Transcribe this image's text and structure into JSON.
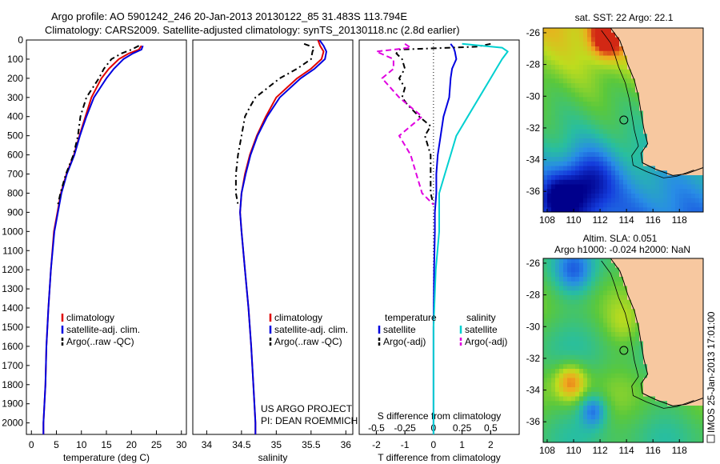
{
  "header": {
    "line1": "Argo profile: AO 5901242_246 20-Jan-2013 20130122_85 31.483S 113.794E",
    "line2": "Climatology: CARS2009. Satellite-adjusted climatology: synTS_20130118.nc (2.8d earlier)"
  },
  "colors": {
    "climatology": "#e00000",
    "satellite": "#0000e0",
    "argo": "#000000",
    "salinity_sat": "#00d0d0",
    "salinity_argo": "#e000e0"
  },
  "chart_data": [
    {
      "type": "line",
      "name": "temperature-profile",
      "xlabel": "temperature (deg C)",
      "ylabel": "",
      "xlim": [
        -1,
        31
      ],
      "ylim": [
        2060,
        0
      ],
      "xticks": [
        0,
        5,
        10,
        15,
        20,
        25,
        30
      ],
      "yticks": [
        0,
        100,
        200,
        300,
        400,
        500,
        600,
        700,
        800,
        900,
        1000,
        1100,
        1200,
        1300,
        1400,
        1500,
        1600,
        1700,
        1800,
        1900,
        2000
      ],
      "legend": [
        "climatology",
        "satellite-adj. clim.",
        "Argo(..raw -QC)"
      ],
      "series": [
        {
          "name": "climatology",
          "y": [
            30,
            50,
            70,
            100,
            150,
            200,
            300,
            400,
            500,
            600,
            700,
            800,
            900,
            1000,
            1200,
            1400,
            1600,
            1800,
            2000,
            2060
          ],
          "x": [
            22.0,
            21.5,
            19.5,
            17.5,
            15.5,
            14.0,
            12.0,
            10.8,
            9.6,
            8.5,
            7.0,
            5.9,
            5.2,
            4.5,
            3.9,
            3.4,
            3.0,
            2.8,
            2.4,
            2.4
          ]
        },
        {
          "name": "satellite-adj. clim.",
          "y": [
            30,
            50,
            70,
            100,
            150,
            200,
            300,
            400,
            500,
            600,
            700,
            800,
            900,
            1000,
            1200,
            1400,
            1600,
            1800,
            2000,
            2060
          ],
          "x": [
            22.3,
            22.0,
            20.3,
            18.4,
            16.5,
            15.0,
            12.5,
            11.0,
            9.7,
            8.6,
            7.1,
            6.0,
            5.3,
            4.6,
            3.9,
            3.4,
            3.0,
            2.8,
            2.4,
            2.4
          ]
        },
        {
          "name": "Argo(..raw -QC)",
          "y": [
            30,
            50,
            70,
            100,
            150,
            200,
            300,
            400,
            500,
            600,
            700,
            800,
            860
          ],
          "x": [
            21.5,
            20.0,
            18.0,
            16.0,
            14.5,
            13.5,
            11.0,
            9.8,
            9.3,
            8.4,
            6.9,
            5.8,
            5.3
          ]
        }
      ]
    },
    {
      "type": "line",
      "name": "salinity-profile",
      "xlabel": "salinity",
      "ylabel": "",
      "xlim": [
        33.8,
        36.1
      ],
      "ylim": [
        2060,
        0
      ],
      "xticks": [
        34,
        34.5,
        35,
        35.5,
        36
      ],
      "legend": [
        "climatology",
        "satellite-adj. clim.",
        "Argo(..raw -QC)"
      ],
      "series": [
        {
          "name": "climatology",
          "y": [
            0,
            30,
            60,
            100,
            150,
            200,
            300,
            400,
            500,
            600,
            700,
            800,
            900,
            1000,
            1200,
            1400,
            1600,
            1800,
            2000,
            2060
          ],
          "x": [
            35.6,
            35.63,
            35.68,
            35.65,
            35.5,
            35.3,
            35.0,
            34.85,
            34.72,
            34.62,
            34.55,
            34.5,
            34.48,
            34.5,
            34.55,
            34.6,
            34.64,
            34.67,
            34.7,
            34.7
          ]
        },
        {
          "name": "satellite-adj. clim.",
          "y": [
            0,
            30,
            60,
            100,
            150,
            200,
            300,
            400,
            500,
            600,
            700,
            800,
            900,
            1000,
            1200,
            1400,
            1600,
            1800,
            2000,
            2060
          ],
          "x": [
            35.62,
            35.68,
            35.72,
            35.7,
            35.55,
            35.35,
            35.05,
            34.87,
            34.73,
            34.63,
            34.56,
            34.5,
            34.48,
            34.5,
            34.55,
            34.6,
            34.64,
            34.67,
            34.7,
            34.7
          ]
        },
        {
          "name": "Argo(..raw -QC)",
          "y": [
            20,
            40,
            60,
            100,
            150,
            200,
            300,
            350,
            400,
            500,
            600,
            700,
            800,
            860
          ],
          "x": [
            35.4,
            35.55,
            35.52,
            35.5,
            35.3,
            35.05,
            34.7,
            34.62,
            34.55,
            34.5,
            34.45,
            34.42,
            34.42,
            34.45
          ]
        }
      ]
    },
    {
      "type": "line",
      "name": "difference-profile",
      "xlabel": "T difference from climatology",
      "xlabel2": "S difference from climatology",
      "xlim": [
        -2.6,
        3.0
      ],
      "ylim": [
        2060,
        0
      ],
      "xticks": [
        -2,
        -1,
        0,
        1,
        2
      ],
      "xticks2": [
        -0.5,
        -0.25,
        0,
        0.25,
        0.5
      ],
      "legend_headers": [
        "temperature",
        "salinity"
      ],
      "legend": [
        "satellite",
        "Argo(-adj)",
        "satellite",
        "Argo(-adj)"
      ],
      "series": [
        {
          "name": "temperature satellite",
          "y": [
            20,
            40,
            60,
            100,
            150,
            200,
            300,
            400,
            500,
            600,
            700,
            800,
            900,
            1000,
            1200,
            1500,
            2000,
            2060
          ],
          "x": [
            0.6,
            0.7,
            0.75,
            0.8,
            0.65,
            0.6,
            0.55,
            0.35,
            0.25,
            0.15,
            0.1,
            0.1,
            0.05,
            0.05,
            0.02,
            0.0,
            0.0,
            0.0
          ]
        },
        {
          "name": "temperature Argo(-adj)",
          "y": [
            20,
            35,
            50,
            70,
            100,
            150,
            200,
            250,
            300,
            340,
            400,
            450,
            500,
            600,
            700,
            800,
            860
          ],
          "x": [
            2.0,
            1.5,
            -1.2,
            -1.3,
            -1.1,
            -1.0,
            -1.2,
            -1.0,
            -1.1,
            -0.9,
            -0.5,
            -0.1,
            -0.3,
            -0.1,
            -0.1,
            -0.1,
            0.0
          ]
        },
        {
          "name": "salinity satellite",
          "y": [
            20,
            40,
            60,
            100,
            150,
            200,
            300,
            400,
            500,
            600,
            700,
            800,
            900,
            1000,
            1200,
            1500,
            2000,
            2060
          ],
          "x": [
            0.25,
            0.6,
            0.65,
            0.6,
            0.55,
            0.5,
            0.4,
            0.3,
            0.2,
            0.15,
            0.1,
            0.05,
            0.05,
            0.05,
            0.02,
            0.0,
            0.0,
            0.0
          ]
        },
        {
          "name": "salinity Argo(-adj)",
          "y": [
            20,
            40,
            60,
            100,
            150,
            200,
            300,
            400,
            500,
            600,
            700,
            800,
            860
          ],
          "x": [
            -0.25,
            -0.2,
            -0.5,
            -0.35,
            -0.35,
            -0.45,
            -0.3,
            -0.1,
            -0.3,
            -0.2,
            -0.15,
            -0.1,
            0.0
          ]
        }
      ]
    },
    {
      "type": "heatmap",
      "name": "sst-map",
      "title": "sat. SST: 22 Argo: 22.1",
      "xlim": [
        107.7,
        119.8
      ],
      "ylim": [
        -37.3,
        -25.7
      ],
      "xticks": [
        108,
        110,
        112,
        114,
        116,
        118
      ],
      "yticks": [
        -26,
        -28,
        -30,
        -32,
        -34,
        -36
      ],
      "marker": {
        "lon": 113.8,
        "lat": -31.5
      }
    },
    {
      "type": "heatmap",
      "name": "sla-map",
      "title": "Altim. SLA: 0.051",
      "subtitle": "Argo h1000: -0.024 h2000: NaN",
      "xlim": [
        107.7,
        119.8
      ],
      "ylim": [
        -37.3,
        -25.7
      ],
      "xticks": [
        108,
        110,
        112,
        114,
        116,
        118
      ],
      "yticks": [
        -26,
        -28,
        -30,
        -32,
        -34,
        -36
      ],
      "marker": {
        "lon": 113.8,
        "lat": -31.5
      }
    }
  ],
  "credits": {
    "project": "US ARGO PROJECT",
    "pi": "PI: DEAN ROEMMICH",
    "imos": "IMOS 25-Jan-2013 17:01:00"
  }
}
